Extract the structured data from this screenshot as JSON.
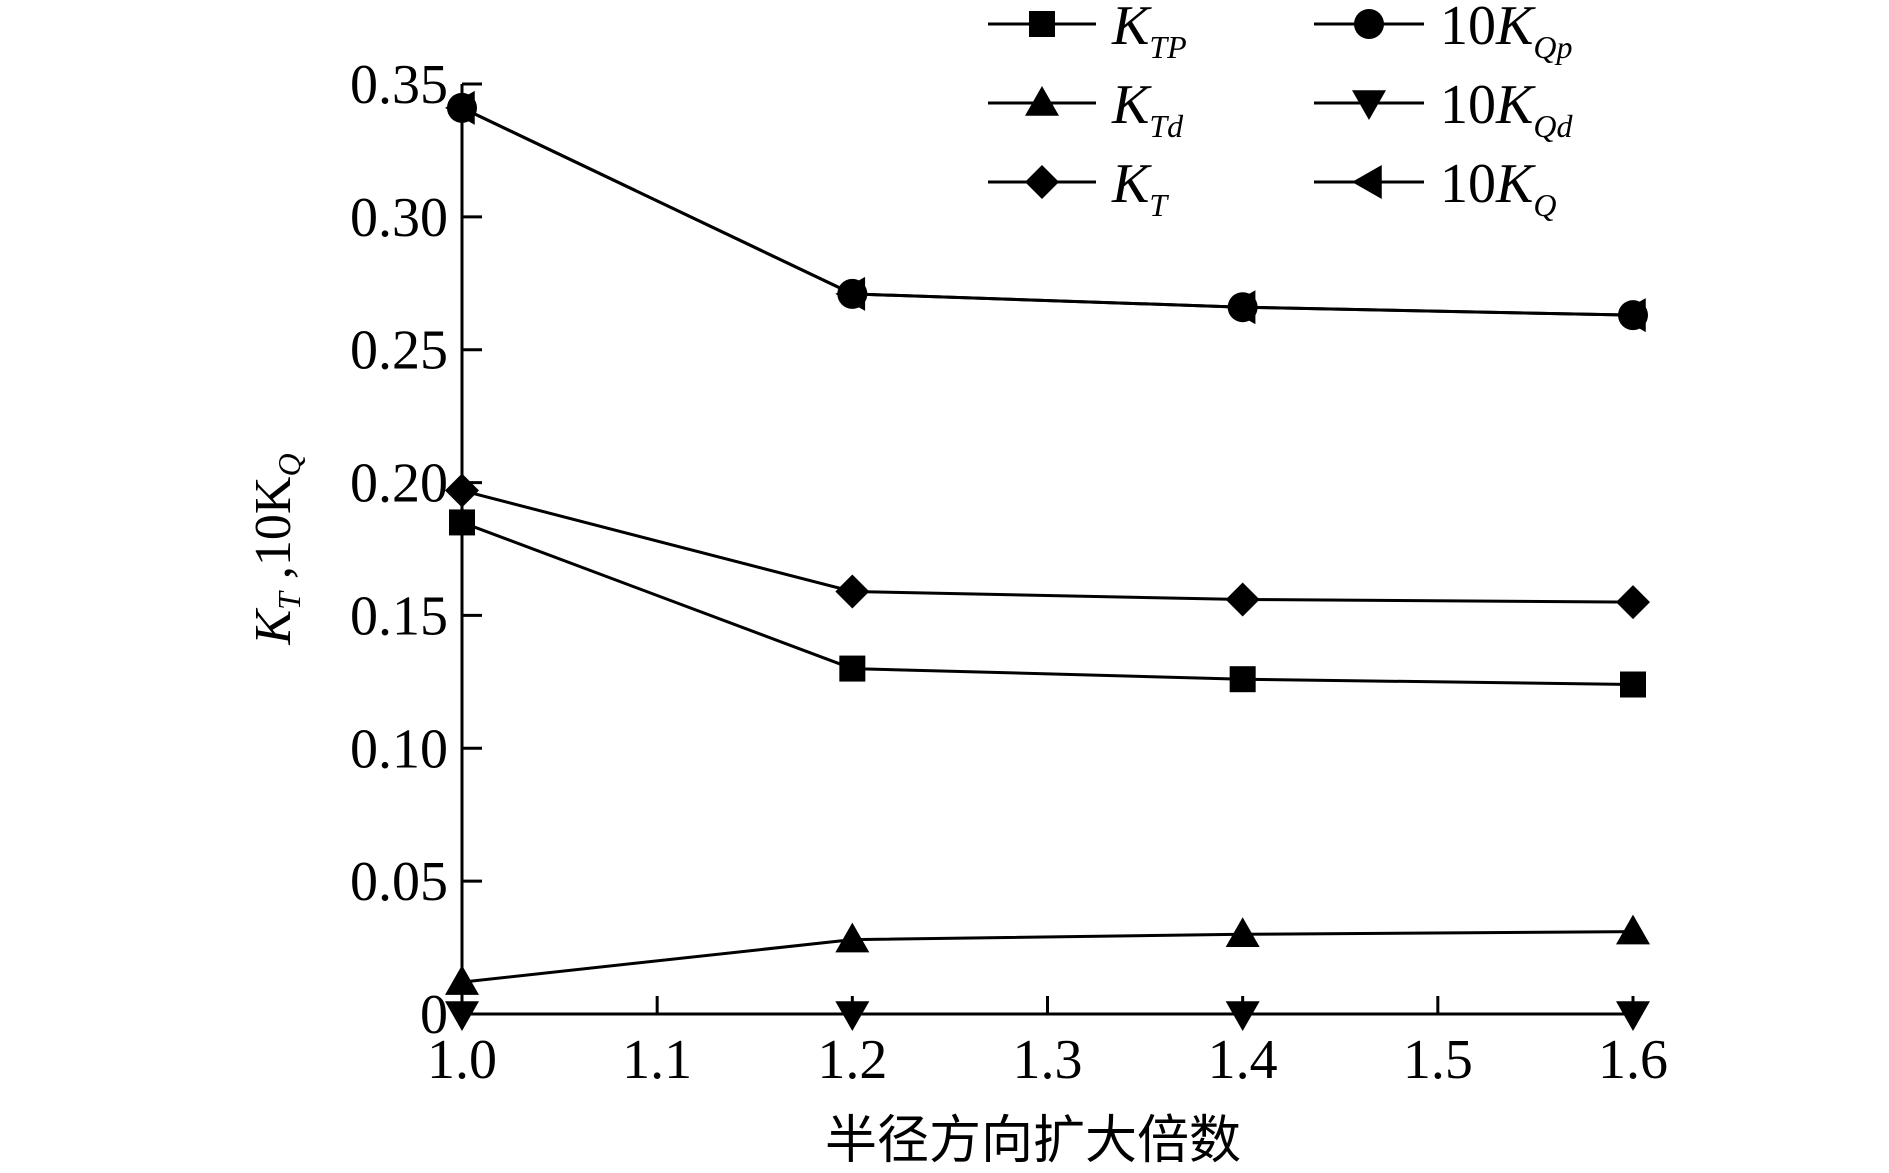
{
  "chart_data": {
    "type": "line",
    "title": "",
    "xlabel": "半径方向扩大倍数",
    "ylabel": "K_T ,10K_Q",
    "xlim": [
      1.0,
      1.6
    ],
    "ylim": [
      0,
      0.35
    ],
    "x_ticks": [
      "1.0",
      "1.1",
      "1.2",
      "1.3",
      "1.4",
      "1.5",
      "1.6"
    ],
    "y_ticks": [
      "0",
      "0.05",
      "0.10",
      "0.15",
      "0.20",
      "0.25",
      "0.30",
      "0.35"
    ],
    "x": [
      1.0,
      1.2,
      1.4,
      1.6
    ],
    "legend_position": "top-right",
    "series": [
      {
        "name": "K_TP",
        "marker": "square",
        "values": [
          0.185,
          0.13,
          0.126,
          0.124
        ]
      },
      {
        "name": "K_Td",
        "marker": "triangle-up",
        "values": [
          0.012,
          0.028,
          0.03,
          0.031
        ]
      },
      {
        "name": "K_T",
        "marker": "diamond",
        "values": [
          0.197,
          0.159,
          0.156,
          0.155
        ]
      },
      {
        "name": "10K_Qp",
        "marker": "circle",
        "values": [
          0.341,
          0.271,
          0.266,
          0.263
        ]
      },
      {
        "name": "10K_Qd",
        "marker": "triangle-down",
        "values": [
          0.0,
          0.0,
          0.0,
          0.0
        ]
      },
      {
        "name": "10K_Q",
        "marker": "triangle-left",
        "values": [
          0.341,
          0.271,
          0.266,
          0.263
        ]
      }
    ],
    "legend": [
      {
        "pre": "",
        "main": "K",
        "sub": "TP"
      },
      {
        "pre": "",
        "main": "K",
        "sub": "Td"
      },
      {
        "pre": "",
        "main": "K",
        "sub": "T"
      },
      {
        "pre": "10",
        "main": "K",
        "sub": "Qp"
      },
      {
        "pre": "10",
        "main": "K",
        "sub": "Qd"
      },
      {
        "pre": "10",
        "main": "K",
        "sub": "Q"
      }
    ]
  }
}
